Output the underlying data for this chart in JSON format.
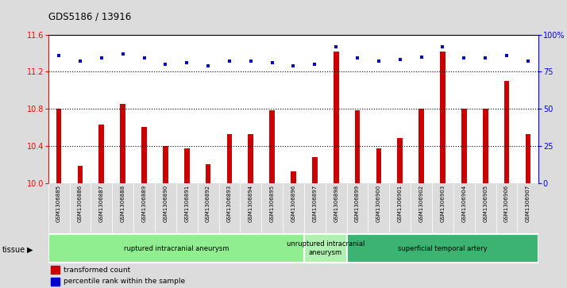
{
  "title": "GDS5186 / 13916",
  "samples": [
    "GSM1306885",
    "GSM1306886",
    "GSM1306887",
    "GSM1306888",
    "GSM1306889",
    "GSM1306890",
    "GSM1306891",
    "GSM1306892",
    "GSM1306893",
    "GSM1306894",
    "GSM1306895",
    "GSM1306896",
    "GSM1306897",
    "GSM1306898",
    "GSM1306899",
    "GSM1306900",
    "GSM1306901",
    "GSM1306902",
    "GSM1306903",
    "GSM1306904",
    "GSM1306905",
    "GSM1306906",
    "GSM1306907"
  ],
  "bar_values": [
    10.8,
    10.18,
    10.63,
    10.85,
    10.6,
    10.4,
    10.37,
    10.2,
    10.53,
    10.53,
    10.78,
    10.12,
    10.28,
    11.42,
    10.78,
    10.37,
    10.48,
    10.8,
    11.42,
    10.8,
    10.8,
    11.1,
    10.53
  ],
  "dot_values": [
    86,
    82,
    84,
    87,
    84,
    80,
    81,
    79,
    82,
    82,
    81,
    79,
    80,
    92,
    84,
    82,
    83,
    85,
    92,
    84,
    84,
    86,
    82
  ],
  "ylim_left": [
    10.0,
    11.6
  ],
  "ylim_right": [
    0,
    100
  ],
  "yticks_left": [
    10.0,
    10.4,
    10.8,
    11.2,
    11.6
  ],
  "yticks_right": [
    0,
    25,
    50,
    75,
    100
  ],
  "ytick_labels_right": [
    "0",
    "25",
    "50",
    "75",
    "100%"
  ],
  "hlines": [
    10.4,
    10.8,
    11.2
  ],
  "groups": [
    {
      "label": "ruptured intracranial aneurysm",
      "start": 0,
      "end": 12,
      "color": "#90EE90"
    },
    {
      "label": "unruptured intracranial\naneurysm",
      "start": 12,
      "end": 14,
      "color": "#b0f0b0"
    },
    {
      "label": "superficial temporal artery",
      "start": 14,
      "end": 23,
      "color": "#3CB371"
    }
  ],
  "bar_color": "#CC0000",
  "dot_color": "#0000CC",
  "bar_width": 0.25,
  "background_color": "#DCDCDC",
  "plot_bg_color": "#FFFFFF",
  "tissue_label": "tissue",
  "legend_items": [
    {
      "label": "transformed count",
      "color": "#CC0000"
    },
    {
      "label": "percentile rank within the sample",
      "color": "#0000CC"
    }
  ]
}
